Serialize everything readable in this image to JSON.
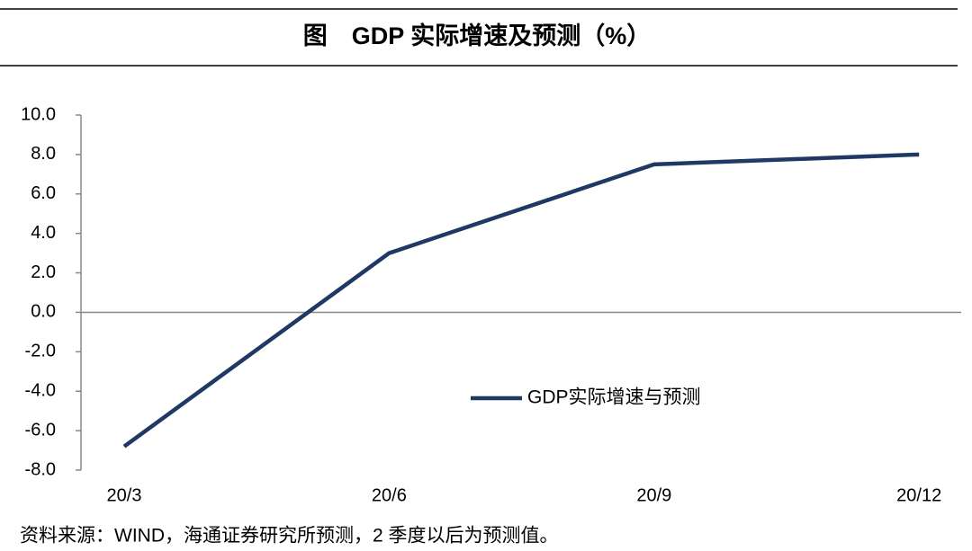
{
  "chart_data": {
    "type": "line",
    "title": "图　GDP 实际增速及预测（%）",
    "categories": [
      "20/3",
      "20/6",
      "20/9",
      "20/12"
    ],
    "series": [
      {
        "name": "GDP实际增速与预测",
        "color": "#203864",
        "values": [
          -6.8,
          3.0,
          7.5,
          8.0
        ]
      }
    ],
    "ylim": [
      -8,
      10
    ],
    "yticks": [
      {
        "value": 10,
        "label": "10.0"
      },
      {
        "value": 8,
        "label": "8.0"
      },
      {
        "value": 6,
        "label": "6.0"
      },
      {
        "value": 4,
        "label": "4.0"
      },
      {
        "value": 2,
        "label": "2.0"
      },
      {
        "value": 0,
        "label": "0.0"
      },
      {
        "value": -2,
        "label": "-2.0"
      },
      {
        "value": -4,
        "label": "-4.0"
      },
      {
        "value": -6,
        "label": "-6.0"
      },
      {
        "value": -8,
        "label": "-8.0"
      }
    ],
    "source": "资料来源：WIND，海通证券研究所预测，2 季度以后为预测值。"
  }
}
